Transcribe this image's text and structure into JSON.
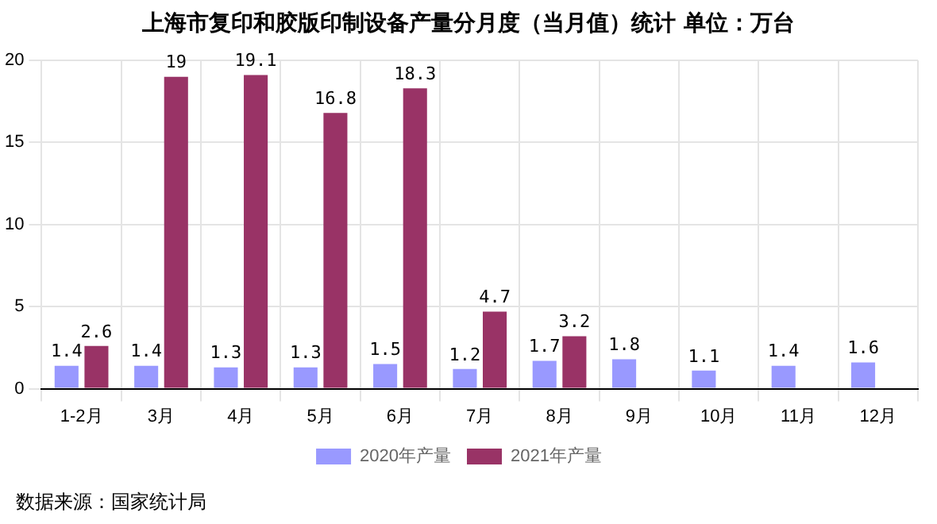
{
  "chart_data": {
    "type": "bar",
    "title": "上海市复印和胶版印制设备产量分月度（当月值）统计  单位：万台",
    "categories": [
      "1-2月",
      "3月",
      "4月",
      "5月",
      "6月",
      "7月",
      "8月",
      "9月",
      "10月",
      "11月",
      "12月"
    ],
    "series": [
      {
        "name": "2020年产量",
        "color": "#9999ff",
        "values": [
          1.4,
          1.4,
          1.3,
          1.3,
          1.5,
          1.2,
          1.7,
          1.8,
          1.1,
          1.4,
          1.6
        ]
      },
      {
        "name": "2021年产量",
        "color": "#993366",
        "values": [
          2.6,
          19,
          19.1,
          16.8,
          18.3,
          4.7,
          3.2,
          null,
          null,
          null,
          null
        ]
      }
    ],
    "ylim": [
      0,
      20
    ],
    "yticks": [
      0,
      5,
      10,
      15,
      20
    ],
    "grid": true,
    "legend": "bottom",
    "data_labels": true,
    "annotations": [
      "数据来源：国家统计局"
    ]
  }
}
